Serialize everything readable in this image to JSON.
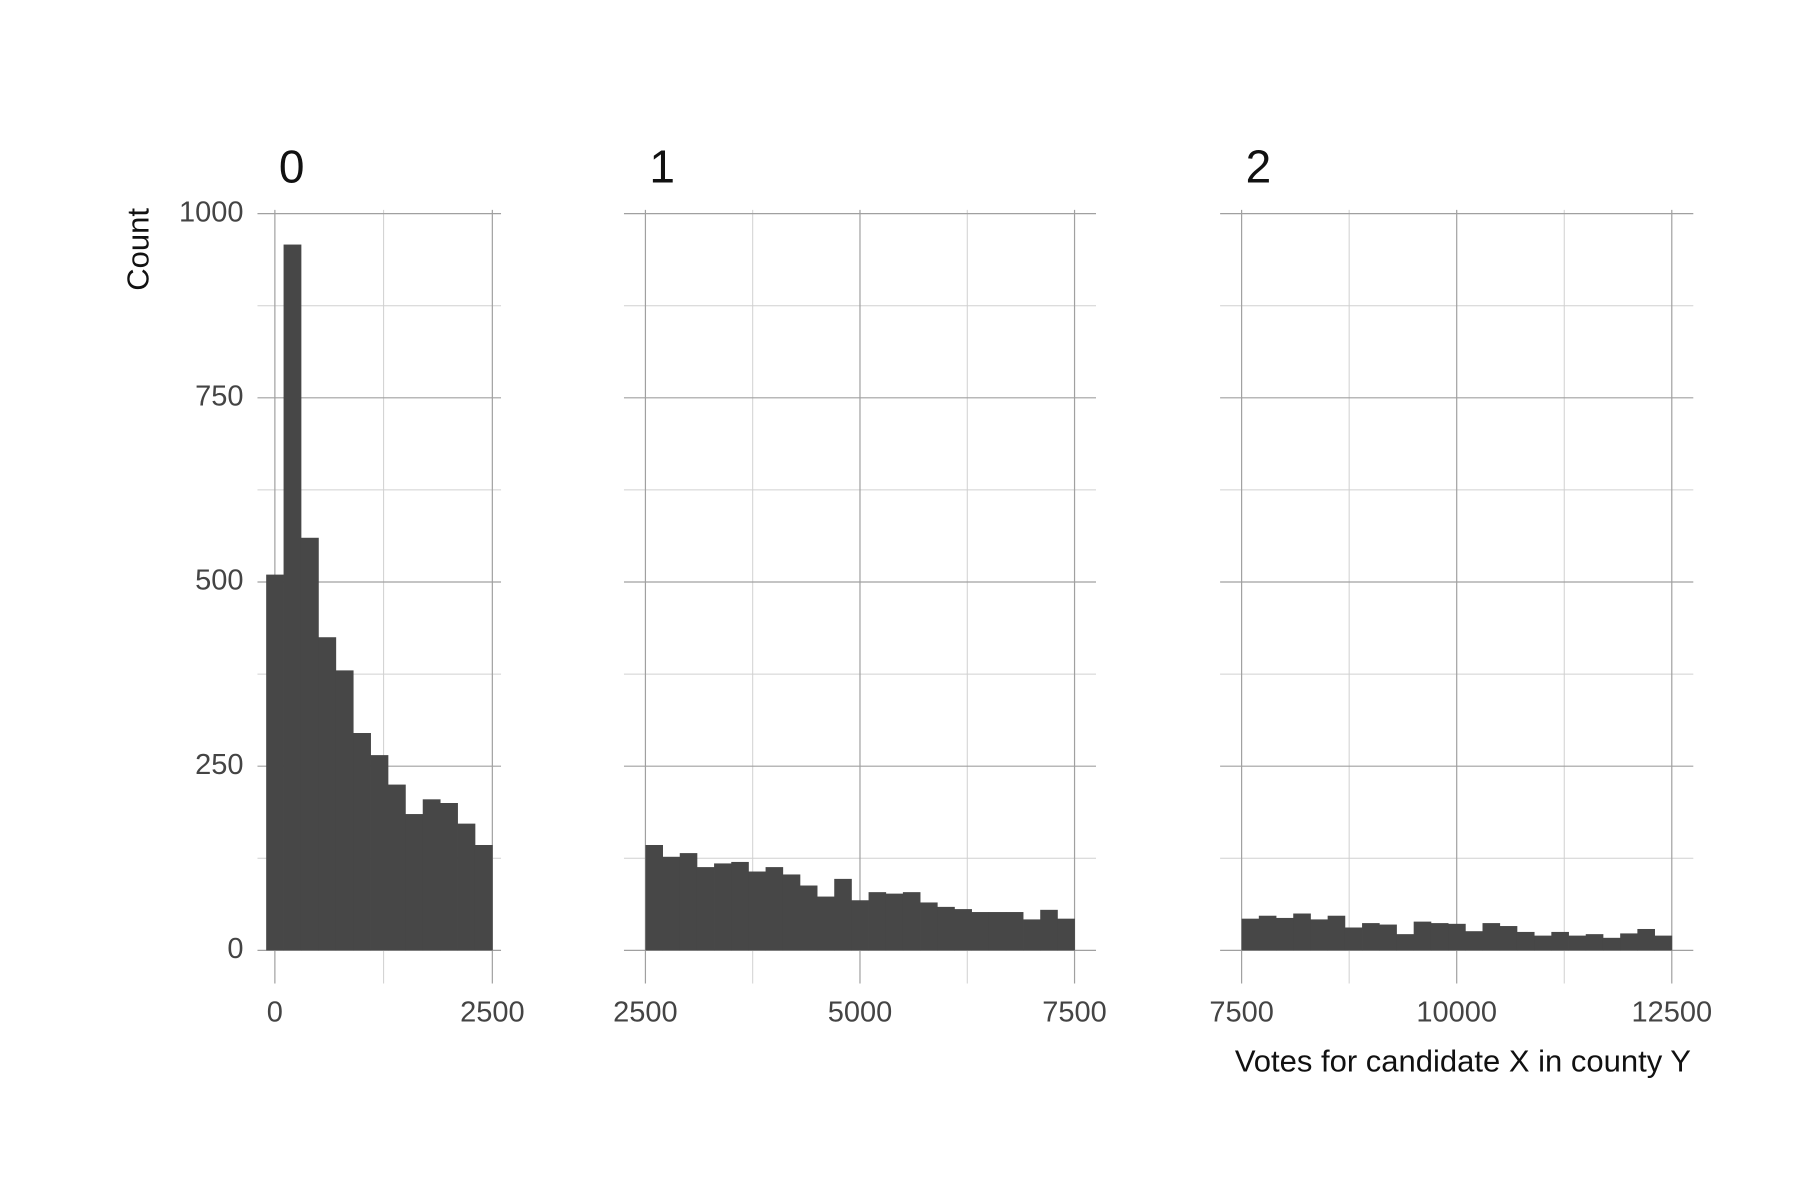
{
  "chart_data": [
    {
      "type": "histogram",
      "title": "0",
      "ylabel": "Count",
      "bins": [
        -100,
        100,
        300,
        500,
        700,
        900,
        1100,
        1300,
        1500,
        1700,
        1900,
        2100,
        2300,
        2500
      ],
      "counts": [
        510,
        958,
        560,
        425,
        380,
        295,
        265,
        225,
        185,
        205,
        200,
        172,
        143
      ],
      "color": "#474747",
      "xlim": [
        -200,
        2600
      ],
      "xticks": [
        0,
        2500
      ],
      "ylim": [
        -45,
        1005
      ],
      "yticks": [
        0,
        250,
        500,
        750,
        1000
      ],
      "y_tick_labels": true,
      "grid": true,
      "minor_grid": true
    },
    {
      "type": "histogram",
      "title": "1",
      "bins": [
        2500,
        2700,
        2900,
        3100,
        3300,
        3500,
        3700,
        3900,
        4100,
        4300,
        4500,
        4700,
        4900,
        5100,
        5300,
        5500,
        5700,
        5900,
        6100,
        6300,
        6500,
        6700,
        6900,
        7100,
        7300,
        7500
      ],
      "counts": [
        143,
        127,
        132,
        113,
        118,
        120,
        107,
        113,
        103,
        88,
        73,
        97,
        68,
        79,
        77,
        79,
        65,
        59,
        56,
        52,
        52,
        52,
        42,
        55,
        43
      ],
      "color": "#474747",
      "xlim": [
        2250,
        7750
      ],
      "xticks": [
        2500,
        5000,
        7500
      ],
      "ylim": [
        -45,
        1005
      ],
      "yticks": [
        0,
        250,
        500,
        750,
        1000
      ],
      "y_tick_labels": false,
      "grid": true,
      "minor_grid": true
    },
    {
      "type": "histogram",
      "title": "2",
      "xlabel": "Votes for candidate X in county Y",
      "bins": [
        7500,
        7700,
        7900,
        8100,
        8300,
        8500,
        8700,
        8900,
        9100,
        9300,
        9500,
        9700,
        9900,
        10100,
        10300,
        10500,
        10700,
        10900,
        11100,
        11300,
        11500,
        11700,
        11900,
        12100,
        12300,
        12500
      ],
      "counts": [
        43,
        47,
        44,
        50,
        42,
        47,
        31,
        37,
        35,
        22,
        39,
        37,
        36,
        26,
        37,
        33,
        25,
        20,
        25,
        20,
        22,
        17,
        23,
        29,
        20
      ],
      "color": "#474747",
      "xlim": [
        7250,
        12750
      ],
      "xticks": [
        7500,
        10000,
        12500
      ],
      "ylim": [
        -45,
        1005
      ],
      "yticks": [
        0,
        250,
        500,
        750,
        1000
      ],
      "y_tick_labels": false,
      "grid": true,
      "minor_grid": true
    }
  ]
}
